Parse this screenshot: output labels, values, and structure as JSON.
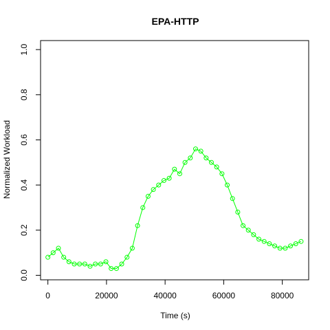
{
  "chart_data": {
    "type": "line",
    "title": "EPA-HTTP",
    "xlabel": "Time (s)",
    "ylabel": "Normalized Workload",
    "xlim": [
      -2500,
      89000
    ],
    "ylim": [
      -0.02,
      1.04
    ],
    "x_ticks": [
      0,
      20000,
      40000,
      60000,
      80000
    ],
    "y_ticks": [
      0.0,
      0.2,
      0.4,
      0.6,
      0.8,
      1.0
    ],
    "x_tick_labels": [
      "0",
      "20000",
      "40000",
      "60000",
      "80000"
    ],
    "y_tick_labels": [
      "0.0",
      "0.2",
      "0.4",
      "0.6",
      "0.8",
      "1.0"
    ],
    "grid": false,
    "legend": "none",
    "series": [
      {
        "color": "#00FF00",
        "marker": "open-circle",
        "x": [
          0,
          1800,
          3600,
          5400,
          7200,
          9000,
          10800,
          12600,
          14400,
          16200,
          18000,
          19800,
          21600,
          23400,
          25200,
          27000,
          28800,
          30600,
          32400,
          34200,
          36000,
          37800,
          39600,
          41400,
          43200,
          45000,
          46800,
          48600,
          50400,
          52200,
          54000,
          55800,
          57600,
          59400,
          61200,
          63000,
          64800,
          66600,
          68400,
          70200,
          72000,
          73800,
          75600,
          77400,
          79200,
          81000,
          82800,
          84600,
          86400
        ],
        "y": [
          0.08,
          0.1,
          0.12,
          0.08,
          0.06,
          0.05,
          0.05,
          0.05,
          0.04,
          0.05,
          0.05,
          0.06,
          0.03,
          0.03,
          0.05,
          0.08,
          0.12,
          0.22,
          0.3,
          0.35,
          0.38,
          0.4,
          0.42,
          0.43,
          0.47,
          0.45,
          0.5,
          0.52,
          0.56,
          0.55,
          0.52,
          0.5,
          0.48,
          0.45,
          0.4,
          0.34,
          0.28,
          0.22,
          0.2,
          0.18,
          0.16,
          0.15,
          0.14,
          0.13,
          0.12,
          0.12,
          0.13,
          0.14,
          0.15
        ]
      }
    ]
  }
}
